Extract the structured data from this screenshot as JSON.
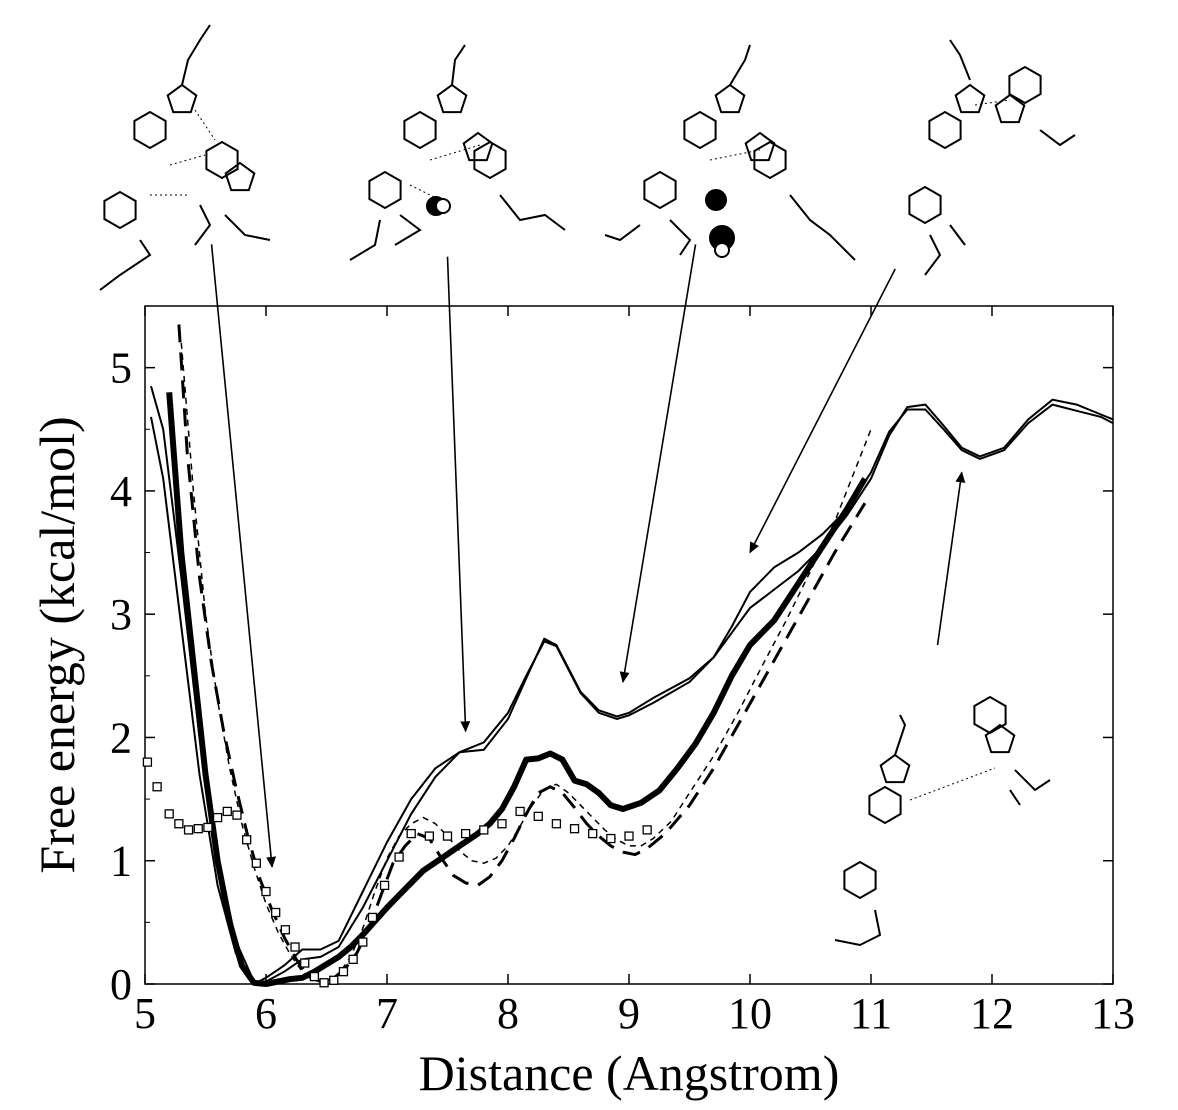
{
  "chart_data": {
    "type": "line",
    "title": "",
    "xlabel": "Distance (Angstrom)",
    "ylabel": "Free energy (kcal/mol)",
    "xlim": [
      5,
      13
    ],
    "ylim": [
      0,
      5.5
    ],
    "xticks": [
      5,
      6,
      7,
      8,
      9,
      10,
      11,
      12,
      13
    ],
    "yticks": [
      0,
      1,
      2,
      3,
      4,
      5
    ],
    "grid": false,
    "legend": "none",
    "series": [
      {
        "name": "upper-curve-a",
        "style": "solid-thin",
        "x": [
          5.05,
          5.15,
          5.3,
          5.45,
          5.6,
          5.75,
          5.9,
          6.0,
          6.15,
          6.3,
          6.45,
          6.6,
          6.8,
          7.0,
          7.2,
          7.4,
          7.6,
          7.8,
          8.0,
          8.15,
          8.3,
          8.4,
          8.5,
          8.6,
          8.75,
          8.9,
          9.0,
          9.2,
          9.5,
          9.7,
          9.85,
          10.0,
          10.2,
          10.4,
          10.6,
          10.8,
          11.0,
          11.15,
          11.3,
          11.45,
          11.6,
          11.75,
          11.9,
          12.1,
          12.3,
          12.5,
          12.7,
          12.9,
          13.0
        ],
        "y": [
          4.6,
          4.1,
          2.9,
          1.7,
          0.8,
          0.25,
          0.0,
          0.05,
          0.15,
          0.28,
          0.28,
          0.35,
          0.75,
          1.15,
          1.5,
          1.75,
          1.88,
          1.96,
          2.2,
          2.5,
          2.78,
          2.74,
          2.55,
          2.36,
          2.2,
          2.15,
          2.18,
          2.28,
          2.45,
          2.65,
          2.9,
          3.18,
          3.38,
          3.5,
          3.65,
          3.85,
          4.15,
          4.48,
          4.66,
          4.66,
          4.5,
          4.33,
          4.26,
          4.33,
          4.55,
          4.7,
          4.65,
          4.6,
          4.55
        ]
      },
      {
        "name": "upper-curve-b",
        "style": "solid-thin",
        "x": [
          5.05,
          5.15,
          5.3,
          5.45,
          5.6,
          5.75,
          5.9,
          6.0,
          6.15,
          6.3,
          6.45,
          6.6,
          6.8,
          7.0,
          7.2,
          7.4,
          7.6,
          7.8,
          8.0,
          8.15,
          8.3,
          8.4,
          8.5,
          8.6,
          8.75,
          8.9,
          9.0,
          9.2,
          9.5,
          9.7,
          9.85,
          10.0,
          10.2,
          10.4,
          10.6,
          10.8,
          11.0,
          11.15,
          11.3,
          11.45,
          11.6,
          11.75,
          11.9,
          12.1,
          12.3,
          12.5,
          12.7,
          12.9,
          13.0
        ],
        "y": [
          4.85,
          4.5,
          3.3,
          2.0,
          1.05,
          0.35,
          0.02,
          0.02,
          0.1,
          0.2,
          0.22,
          0.3,
          0.62,
          1.0,
          1.38,
          1.68,
          1.88,
          1.9,
          2.15,
          2.48,
          2.8,
          2.75,
          2.56,
          2.37,
          2.22,
          2.17,
          2.2,
          2.32,
          2.48,
          2.65,
          2.85,
          3.05,
          3.2,
          3.35,
          3.55,
          3.8,
          4.1,
          4.45,
          4.68,
          4.7,
          4.53,
          4.35,
          4.28,
          4.35,
          4.58,
          4.74,
          4.7,
          4.62,
          4.58
        ]
      },
      {
        "name": "thick-curve",
        "style": "solid-thick",
        "x": [
          5.2,
          5.3,
          5.4,
          5.5,
          5.6,
          5.7,
          5.8,
          5.9,
          6.0,
          6.1,
          6.2,
          6.3,
          6.4,
          6.5,
          6.6,
          6.7,
          6.8,
          7.0,
          7.1,
          7.2,
          7.3,
          7.45,
          7.6,
          7.75,
          7.85,
          7.95,
          8.05,
          8.15,
          8.25,
          8.35,
          8.45,
          8.55,
          8.65,
          8.75,
          8.85,
          8.95,
          9.1,
          9.25,
          9.4,
          9.55,
          9.7,
          9.85,
          10.0,
          10.2,
          10.4,
          10.6,
          10.8,
          10.95
        ],
        "y": [
          4.8,
          3.5,
          2.6,
          1.7,
          1.0,
          0.5,
          0.15,
          0.01,
          0.0,
          0.02,
          0.04,
          0.05,
          0.1,
          0.16,
          0.22,
          0.3,
          0.4,
          0.62,
          0.72,
          0.82,
          0.92,
          1.02,
          1.12,
          1.22,
          1.3,
          1.42,
          1.6,
          1.82,
          1.83,
          1.87,
          1.82,
          1.65,
          1.62,
          1.55,
          1.45,
          1.42,
          1.47,
          1.57,
          1.75,
          1.95,
          2.2,
          2.5,
          2.75,
          2.95,
          3.25,
          3.55,
          3.85,
          4.1
        ]
      },
      {
        "name": "thick-dashed",
        "style": "dashed-thick",
        "x": [
          5.28,
          5.35,
          5.45,
          5.55,
          5.65,
          5.75,
          5.85,
          5.95,
          6.05,
          6.15,
          6.25,
          6.35,
          6.45,
          6.55,
          6.65,
          6.75,
          6.85,
          6.95,
          7.05,
          7.15,
          7.25,
          7.35,
          7.45,
          7.55,
          7.65,
          7.75,
          7.85,
          7.95,
          8.05,
          8.15,
          8.25,
          8.35,
          8.45,
          8.55,
          8.65,
          8.75,
          8.85,
          8.95,
          9.05,
          9.15,
          9.3,
          9.5,
          9.7,
          9.9,
          10.1,
          10.3,
          10.5,
          10.7,
          10.95
        ],
        "y": [
          5.35,
          4.3,
          3.3,
          2.6,
          2.05,
          1.6,
          1.2,
          0.85,
          0.6,
          0.38,
          0.2,
          0.06,
          0.02,
          0.04,
          0.12,
          0.25,
          0.45,
          0.72,
          0.98,
          1.12,
          1.22,
          1.18,
          1.02,
          0.88,
          0.82,
          0.8,
          0.87,
          1.0,
          1.18,
          1.38,
          1.55,
          1.6,
          1.55,
          1.43,
          1.3,
          1.2,
          1.12,
          1.07,
          1.05,
          1.1,
          1.22,
          1.45,
          1.75,
          2.1,
          2.45,
          2.8,
          3.15,
          3.5,
          3.9
        ]
      },
      {
        "name": "thin-dashed",
        "style": "dashed-thin",
        "x": [
          5.3,
          5.4,
          5.5,
          5.6,
          5.7,
          5.8,
          5.9,
          6.0,
          6.1,
          6.2,
          6.3,
          6.4,
          6.5,
          6.6,
          6.7,
          6.8,
          6.9,
          7.0,
          7.1,
          7.2,
          7.3,
          7.4,
          7.5,
          7.6,
          7.7,
          7.8,
          7.9,
          8.0,
          8.1,
          8.2,
          8.3,
          8.4,
          8.5,
          8.6,
          8.7,
          8.8,
          8.9,
          9.0,
          9.1,
          9.2,
          9.35,
          9.5,
          9.7,
          9.9,
          10.1,
          10.3,
          10.5,
          10.7,
          10.9,
          11.0
        ],
        "y": [
          5.2,
          4.0,
          3.0,
          2.3,
          1.75,
          1.3,
          0.95,
          0.65,
          0.42,
          0.24,
          0.1,
          0.03,
          0.02,
          0.08,
          0.22,
          0.45,
          0.75,
          1.02,
          1.2,
          1.3,
          1.35,
          1.3,
          1.2,
          1.08,
          1.0,
          0.98,
          1.02,
          1.12,
          1.28,
          1.45,
          1.58,
          1.62,
          1.55,
          1.45,
          1.35,
          1.25,
          1.17,
          1.12,
          1.12,
          1.18,
          1.32,
          1.55,
          1.85,
          2.2,
          2.58,
          2.95,
          3.35,
          3.75,
          4.25,
          4.5
        ]
      },
      {
        "name": "square-markers",
        "style": "open-squares",
        "x": [
          5.02,
          5.1,
          5.2,
          5.28,
          5.36,
          5.44,
          5.52,
          5.6,
          5.68,
          5.76,
          5.84,
          5.92,
          6.0,
          6.08,
          6.16,
          6.24,
          6.32,
          6.4,
          6.48,
          6.56,
          6.64,
          6.72,
          6.8,
          6.88,
          6.98,
          7.1,
          7.2,
          7.35,
          7.5,
          7.65,
          7.8,
          7.95,
          8.1,
          8.25,
          8.4,
          8.55,
          8.7,
          8.85,
          9.0,
          9.15
        ],
        "y": [
          1.8,
          1.6,
          1.38,
          1.3,
          1.25,
          1.26,
          1.27,
          1.35,
          1.4,
          1.37,
          1.17,
          0.98,
          0.75,
          0.58,
          0.44,
          0.3,
          0.17,
          0.06,
          0.01,
          0.03,
          0.1,
          0.2,
          0.34,
          0.54,
          0.8,
          1.03,
          1.22,
          1.2,
          1.2,
          1.22,
          1.25,
          1.3,
          1.4,
          1.36,
          1.3,
          1.26,
          1.22,
          1.18,
          1.2,
          1.25
        ]
      }
    ],
    "annotations": [
      {
        "name": "arrow-1",
        "from": [
          5.55,
          6.0
        ],
        "to": [
          6.05,
          0.95
        ]
      },
      {
        "name": "arrow-2",
        "from": [
          7.5,
          5.9
        ],
        "to": [
          7.65,
          2.05
        ]
      },
      {
        "name": "arrow-3",
        "from": [
          9.55,
          6.0
        ],
        "to": [
          8.95,
          2.45
        ]
      },
      {
        "name": "arrow-4",
        "from": [
          11.2,
          5.8
        ],
        "to": [
          10.0,
          3.5
        ]
      },
      {
        "name": "arrow-5",
        "from": [
          11.55,
          2.75
        ],
        "to": [
          11.75,
          4.15
        ]
      }
    ]
  }
}
